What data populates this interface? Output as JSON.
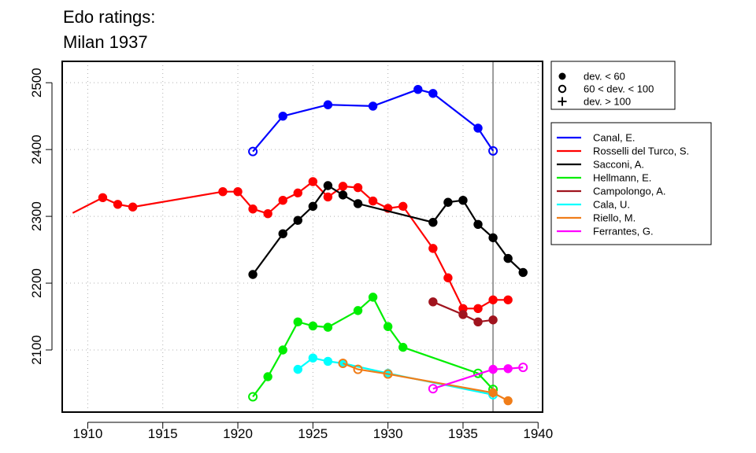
{
  "chart_data": {
    "type": "line",
    "title_lines": [
      "Edo ratings:",
      "Milan 1937"
    ],
    "xlabel": "",
    "ylabel": "",
    "xlim": [
      1908.3,
      1940.3
    ],
    "ylim": [
      2007,
      2532
    ],
    "x_ticks": [
      1910,
      1915,
      1920,
      1925,
      1930,
      1935,
      1940
    ],
    "y_ticks": [
      2100,
      2200,
      2300,
      2400,
      2500
    ],
    "grid": true,
    "reference_line_x": 1937,
    "marker_legend": {
      "placement": "top-right",
      "entries": [
        {
          "symbol": "filled-circle",
          "label": "dev. < 60"
        },
        {
          "symbol": "open-circle",
          "label": "60 < dev. < 100"
        },
        {
          "symbol": "plus",
          "label": "dev. > 100"
        }
      ]
    },
    "series_legend_placement": "right",
    "series": [
      {
        "name": "Canal, E.",
        "color": "#0000ff",
        "points": [
          {
            "x": 1921,
            "y": 2397,
            "m": "open"
          },
          {
            "x": 1923,
            "y": 2450,
            "m": "filled"
          },
          {
            "x": 1926,
            "y": 2467,
            "m": "filled"
          },
          {
            "x": 1929,
            "y": 2465,
            "m": "filled"
          },
          {
            "x": 1932,
            "y": 2490,
            "m": "filled"
          },
          {
            "x": 1933,
            "y": 2484,
            "m": "filled"
          },
          {
            "x": 1936,
            "y": 2432,
            "m": "filled"
          },
          {
            "x": 1937,
            "y": 2398,
            "m": "open"
          }
        ]
      },
      {
        "name": "Rosselli del Turco, S.",
        "color": "#ff0000",
        "points": [
          {
            "x": 1909,
            "y": 2305,
            "m": "none"
          },
          {
            "x": 1911,
            "y": 2328,
            "m": "filled"
          },
          {
            "x": 1912,
            "y": 2318,
            "m": "filled"
          },
          {
            "x": 1913,
            "y": 2314,
            "m": "filled"
          },
          {
            "x": 1919,
            "y": 2337,
            "m": "filled"
          },
          {
            "x": 1920,
            "y": 2337,
            "m": "filled"
          },
          {
            "x": 1921,
            "y": 2311,
            "m": "filled"
          },
          {
            "x": 1922,
            "y": 2304,
            "m": "filled"
          },
          {
            "x": 1923,
            "y": 2324,
            "m": "filled"
          },
          {
            "x": 1924,
            "y": 2335,
            "m": "filled"
          },
          {
            "x": 1925,
            "y": 2352,
            "m": "filled"
          },
          {
            "x": 1926,
            "y": 2329,
            "m": "filled"
          },
          {
            "x": 1927,
            "y": 2345,
            "m": "filled"
          },
          {
            "x": 1928,
            "y": 2343,
            "m": "filled"
          },
          {
            "x": 1929,
            "y": 2323,
            "m": "filled"
          },
          {
            "x": 1930,
            "y": 2312,
            "m": "filled"
          },
          {
            "x": 1931,
            "y": 2315,
            "m": "filled"
          },
          {
            "x": 1933,
            "y": 2252,
            "m": "filled"
          },
          {
            "x": 1934,
            "y": 2208,
            "m": "filled"
          },
          {
            "x": 1935,
            "y": 2162,
            "m": "filled"
          },
          {
            "x": 1936,
            "y": 2162,
            "m": "filled"
          },
          {
            "x": 1937,
            "y": 2175,
            "m": "filled"
          },
          {
            "x": 1938,
            "y": 2175,
            "m": "filled"
          }
        ]
      },
      {
        "name": "Sacconi, A.",
        "color": "#000000",
        "points": [
          {
            "x": 1921,
            "y": 2213,
            "m": "filled"
          },
          {
            "x": 1923,
            "y": 2274,
            "m": "filled"
          },
          {
            "x": 1924,
            "y": 2294,
            "m": "filled"
          },
          {
            "x": 1925,
            "y": 2315,
            "m": "filled"
          },
          {
            "x": 1926,
            "y": 2346,
            "m": "filled"
          },
          {
            "x": 1927,
            "y": 2332,
            "m": "filled"
          },
          {
            "x": 1928,
            "y": 2319,
            "m": "filled"
          },
          {
            "x": 1933,
            "y": 2291,
            "m": "filled"
          },
          {
            "x": 1934,
            "y": 2321,
            "m": "filled"
          },
          {
            "x": 1935,
            "y": 2324,
            "m": "filled"
          },
          {
            "x": 1936,
            "y": 2288,
            "m": "filled"
          },
          {
            "x": 1937,
            "y": 2268,
            "m": "filled"
          },
          {
            "x": 1938,
            "y": 2237,
            "m": "filled"
          },
          {
            "x": 1939,
            "y": 2216,
            "m": "filled"
          }
        ]
      },
      {
        "name": "Hellmann, E.",
        "color": "#00ee00",
        "points": [
          {
            "x": 1921,
            "y": 2030,
            "m": "open"
          },
          {
            "x": 1922,
            "y": 2060,
            "m": "filled"
          },
          {
            "x": 1923,
            "y": 2100,
            "m": "filled"
          },
          {
            "x": 1924,
            "y": 2142,
            "m": "filled"
          },
          {
            "x": 1925,
            "y": 2136,
            "m": "filled"
          },
          {
            "x": 1926,
            "y": 2134,
            "m": "filled"
          },
          {
            "x": 1928,
            "y": 2159,
            "m": "filled"
          },
          {
            "x": 1929,
            "y": 2179,
            "m": "filled"
          },
          {
            "x": 1930,
            "y": 2135,
            "m": "filled"
          },
          {
            "x": 1931,
            "y": 2104,
            "m": "filled"
          },
          {
            "x": 1936,
            "y": 2065,
            "m": "open"
          },
          {
            "x": 1937,
            "y": 2041,
            "m": "open"
          }
        ]
      },
      {
        "name": "Campolongo, A.",
        "color": "#a0141e",
        "points": [
          {
            "x": 1933,
            "y": 2172,
            "m": "filled"
          },
          {
            "x": 1935,
            "y": 2153,
            "m": "filled"
          },
          {
            "x": 1936,
            "y": 2142,
            "m": "filled"
          },
          {
            "x": 1937,
            "y": 2145,
            "m": "filled"
          }
        ]
      },
      {
        "name": "Cala, U.",
        "color": "#00ffff",
        "points": [
          {
            "x": 1924,
            "y": 2071,
            "m": "filled"
          },
          {
            "x": 1925,
            "y": 2088,
            "m": "filled"
          },
          {
            "x": 1926,
            "y": 2083,
            "m": "filled"
          },
          {
            "x": 1927,
            "y": 2080,
            "m": "filled"
          },
          {
            "x": 1930,
            "y": 2065,
            "m": "filled"
          },
          {
            "x": 1937,
            "y": 2033,
            "m": "open"
          }
        ]
      },
      {
        "name": "Riello, M.",
        "color": "#f07d19",
        "points": [
          {
            "x": 1927,
            "y": 2080,
            "m": "open"
          },
          {
            "x": 1928,
            "y": 2071,
            "m": "open"
          },
          {
            "x": 1930,
            "y": 2064,
            "m": "open"
          },
          {
            "x": 1937,
            "y": 2036,
            "m": "filled"
          },
          {
            "x": 1938,
            "y": 2024,
            "m": "filled"
          }
        ]
      },
      {
        "name": "Ferrantes, G.",
        "color": "#ff00ff",
        "points": [
          {
            "x": 1933,
            "y": 2042,
            "m": "open"
          },
          {
            "x": 1937,
            "y": 2071,
            "m": "filled"
          },
          {
            "x": 1938,
            "y": 2072,
            "m": "filled"
          },
          {
            "x": 1939,
            "y": 2074,
            "m": "open"
          }
        ]
      }
    ]
  }
}
